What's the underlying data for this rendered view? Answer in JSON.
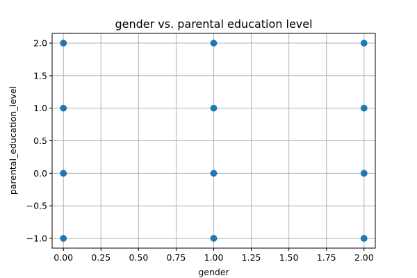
{
  "chart_data": {
    "type": "scatter",
    "title": "gender vs. parental education level",
    "xlabel": "gender",
    "ylabel": "parental_education_level",
    "xlim": [
      -0.075,
      2.075
    ],
    "ylim": [
      -1.15,
      2.15
    ],
    "xticks": [
      0.0,
      0.25,
      0.5,
      0.75,
      1.0,
      1.25,
      1.5,
      1.75,
      2.0
    ],
    "xtick_labels": [
      "0.00",
      "0.25",
      "0.50",
      "0.75",
      "1.00",
      "1.25",
      "1.50",
      "1.75",
      "2.00"
    ],
    "yticks": [
      -1.0,
      -0.5,
      0.0,
      0.5,
      1.0,
      1.5,
      2.0
    ],
    "ytick_labels": [
      "−1.0",
      "−0.5",
      "0.0",
      "0.5",
      "1.0",
      "1.5",
      "2.0"
    ],
    "grid": true,
    "marker_color": "#1f77b4",
    "points": [
      {
        "x": 0,
        "y": 2
      },
      {
        "x": 0,
        "y": 1
      },
      {
        "x": 0,
        "y": 0
      },
      {
        "x": 0,
        "y": -1
      },
      {
        "x": 1,
        "y": 2
      },
      {
        "x": 1,
        "y": 1
      },
      {
        "x": 1,
        "y": 0
      },
      {
        "x": 1,
        "y": -1
      },
      {
        "x": 2,
        "y": 2
      },
      {
        "x": 2,
        "y": 1
      },
      {
        "x": 2,
        "y": 0
      },
      {
        "x": 2,
        "y": -1
      }
    ]
  }
}
